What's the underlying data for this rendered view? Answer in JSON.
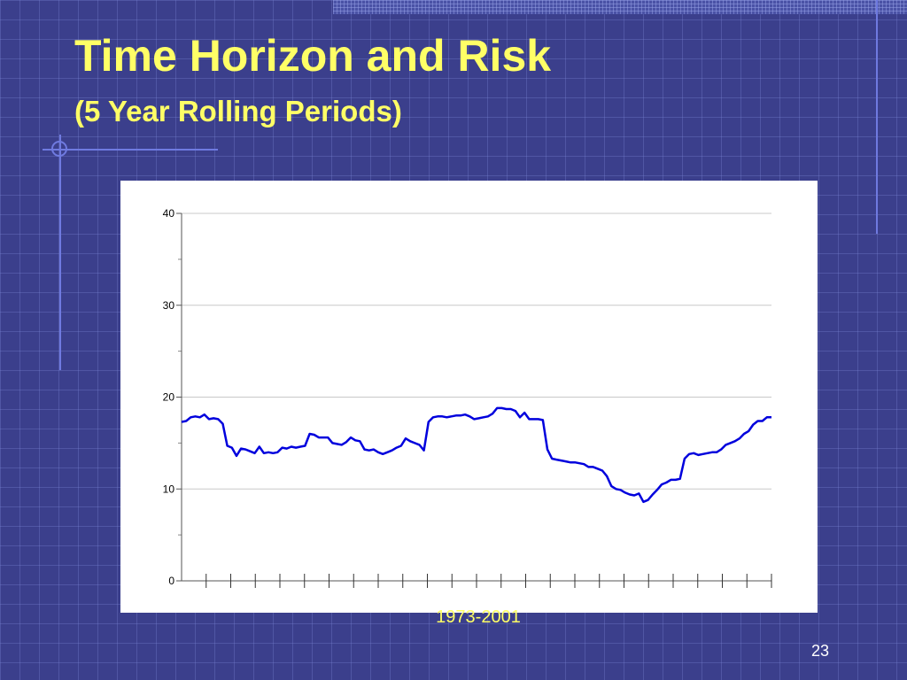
{
  "slide": {
    "title": "Time Horizon and Risk",
    "subtitle": "(5 Year Rolling Periods)",
    "page_number": "23",
    "title_color": "#ffff66",
    "background_color": "#3b3f8c"
  },
  "chart_data": {
    "type": "line",
    "title": "",
    "xlabel": "1973-2001",
    "ylabel": "",
    "ylim": [
      0,
      40
    ],
    "yticks": [
      0,
      10,
      20,
      30,
      40
    ],
    "x_tick_count": 24,
    "grid": true,
    "series_color": "#0000dd",
    "series": [
      {
        "values": [
          17.3,
          17.4,
          17.8,
          17.9,
          17.8,
          18.1,
          17.6,
          17.7,
          17.6,
          17.1,
          14.7,
          14.5,
          13.6,
          14.4,
          14.3,
          14.1,
          13.9,
          14.6,
          13.9,
          14.0,
          13.9,
          14.0,
          14.5,
          14.4,
          14.6,
          14.5,
          14.6,
          14.7,
          16.0,
          15.9,
          15.6,
          15.6,
          15.6,
          15.0,
          14.9,
          14.8,
          15.1,
          15.6,
          15.3,
          15.2,
          14.3,
          14.2,
          14.3,
          14.0,
          13.8,
          14.0,
          14.2,
          14.5,
          14.7,
          15.5,
          15.2,
          15.0,
          14.8,
          14.2,
          17.3,
          17.8,
          17.9,
          17.9,
          17.8,
          17.9,
          18.0,
          18.0,
          18.1,
          17.9,
          17.6,
          17.7,
          17.8,
          17.9,
          18.2,
          18.8,
          18.8,
          18.7,
          18.7,
          18.5,
          17.8,
          18.3,
          17.6,
          17.6,
          17.6,
          17.5,
          14.3,
          13.3,
          13.2,
          13.1,
          13.0,
          12.9,
          12.9,
          12.8,
          12.7,
          12.4,
          12.4,
          12.2,
          12.0,
          11.4,
          10.3,
          10.0,
          9.9,
          9.6,
          9.4,
          9.3,
          9.5,
          8.6,
          8.8,
          9.4,
          9.9,
          10.5,
          10.7,
          11.0,
          11.0,
          11.1,
          13.3,
          13.8,
          13.9,
          13.7,
          13.8,
          13.9,
          14.0,
          14.0,
          14.3,
          14.8,
          15.0,
          15.2,
          15.5,
          16.0,
          16.3,
          17.0,
          17.4,
          17.4,
          17.8,
          17.8
        ]
      }
    ]
  }
}
